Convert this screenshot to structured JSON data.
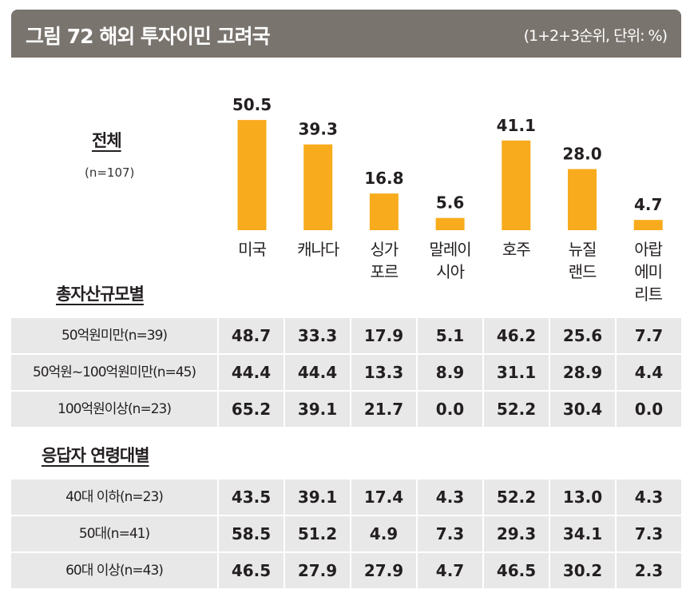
{
  "header": {
    "title": "그림 72  해외 투자이민 고려국",
    "unit": "(1+2+3순위, 단위: %)"
  },
  "chart_data": {
    "type": "bar",
    "categories": [
      "미국",
      "캐나다",
      "싱가\n포르",
      "말레이\n시아",
      "호주",
      "뉴질\n랜드",
      "아랍\n에미\n리트"
    ],
    "series": [
      {
        "name": "전체",
        "values": [
          50.5,
          39.3,
          16.8,
          5.6,
          41.1,
          28.0,
          4.7
        ]
      }
    ],
    "overall_label": "전체",
    "overall_n": "(n=107)",
    "bar_color": "#f8ab1c"
  },
  "tables": [
    {
      "title": "총자산규모별",
      "rows": [
        {
          "label": "50억원미만(n=39)",
          "values": [
            "48.7",
            "33.3",
            "17.9",
            "5.1",
            "46.2",
            "25.6",
            "7.7"
          ]
        },
        {
          "label": "50억원~100억원미만(n=45)",
          "values": [
            "44.4",
            "44.4",
            "13.3",
            "8.9",
            "31.1",
            "28.9",
            "4.4"
          ]
        },
        {
          "label": "100억원이상(n=23)",
          "values": [
            "65.2",
            "39.1",
            "21.7",
            "0.0",
            "52.2",
            "30.4",
            "0.0"
          ]
        }
      ]
    },
    {
      "title": "응답자 연령대별",
      "rows": [
        {
          "label": "40대 이하(n=23)",
          "values": [
            "43.5",
            "39.1",
            "17.4",
            "4.3",
            "52.2",
            "13.0",
            "4.3"
          ]
        },
        {
          "label": "50대(n=41)",
          "values": [
            "58.5",
            "51.2",
            "4.9",
            "7.3",
            "29.3",
            "34.1",
            "7.3"
          ]
        },
        {
          "label": "60대 이상(n=43)",
          "values": [
            "46.5",
            "27.9",
            "27.9",
            "4.7",
            "46.5",
            "30.2",
            "2.3"
          ]
        }
      ]
    }
  ]
}
